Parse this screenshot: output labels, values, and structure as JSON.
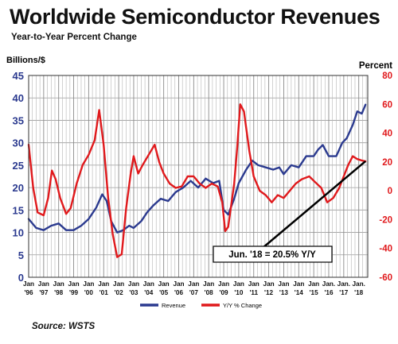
{
  "header": {
    "title": "Worldwide Semiconductor Revenues",
    "subtitle": "Year-to-Year Percent Change"
  },
  "source": "Source: WSTS",
  "colors": {
    "revenue": "#2b3a8f",
    "yoy": "#e0191c",
    "callout_line": "#000000"
  },
  "chart_data": {
    "type": "line",
    "left_axis": {
      "label": "Billions/$",
      "min": 0,
      "max": 45,
      "ticks": [
        "0",
        "5",
        "10",
        "15",
        "20",
        "25",
        "30",
        "35",
        "40",
        "45"
      ]
    },
    "right_axis": {
      "label": "Percent",
      "min": -60,
      "max": 80,
      "ticks": [
        "-60",
        "-40",
        "-20",
        "0",
        "20",
        "40",
        "60",
        "80"
      ]
    },
    "x_ticks": [
      {
        "top": "Jan",
        "bottom": "'96"
      },
      {
        "top": "Jan",
        "bottom": "'97"
      },
      {
        "top": "Jan",
        "bottom": "'98"
      },
      {
        "top": "Jan",
        "bottom": "'99"
      },
      {
        "top": "Jan",
        "bottom": "'00"
      },
      {
        "top": "Jan",
        "bottom": "'01"
      },
      {
        "top": "Jan",
        "bottom": "'02"
      },
      {
        "top": "Jan",
        "bottom": "'03"
      },
      {
        "top": "Jan",
        "bottom": "'04"
      },
      {
        "top": "Jan",
        "bottom": "'05"
      },
      {
        "top": "Jan",
        "bottom": "'06"
      },
      {
        "top": "Jan",
        "bottom": "'07"
      },
      {
        "top": "Jan",
        "bottom": "'08"
      },
      {
        "top": "Jan",
        "bottom": "'09"
      },
      {
        "top": "Jan",
        "bottom": "'10"
      },
      {
        "top": "Jan",
        "bottom": "'11"
      },
      {
        "top": "Jan",
        "bottom": "'12"
      },
      {
        "top": "Jan",
        "bottom": "'13"
      },
      {
        "top": "Jan",
        "bottom": "'14"
      },
      {
        "top": "Jan",
        "bottom": "'15"
      },
      {
        "top": "Jan.",
        "bottom": "'16"
      },
      {
        "top": "Jan.",
        "bottom": "'17"
      },
      {
        "top": "Jan.",
        "bottom": "'18"
      }
    ],
    "grid": true,
    "legend_position": "bottom-center",
    "series": [
      {
        "name": "Revenue",
        "axis": "left",
        "points": [
          [
            1996.0,
            13
          ],
          [
            1996.5,
            11
          ],
          [
            1997.0,
            10.5
          ],
          [
            1997.5,
            11.5
          ],
          [
            1998.0,
            12
          ],
          [
            1998.5,
            10.5
          ],
          [
            1999.0,
            10.5
          ],
          [
            1999.5,
            11.5
          ],
          [
            2000.0,
            13
          ],
          [
            2000.5,
            15.5
          ],
          [
            2000.9,
            18.5
          ],
          [
            2001.2,
            17
          ],
          [
            2001.5,
            12.5
          ],
          [
            2001.9,
            10
          ],
          [
            2002.3,
            10.5
          ],
          [
            2002.7,
            11.5
          ],
          [
            2003.0,
            11
          ],
          [
            2003.5,
            12.5
          ],
          [
            2003.9,
            14.5
          ],
          [
            2004.3,
            16
          ],
          [
            2004.8,
            17.5
          ],
          [
            2005.3,
            17
          ],
          [
            2005.8,
            19
          ],
          [
            2006.3,
            20
          ],
          [
            2006.8,
            21.5
          ],
          [
            2007.3,
            20
          ],
          [
            2007.8,
            22
          ],
          [
            2008.3,
            21
          ],
          [
            2008.7,
            21.5
          ],
          [
            2009.0,
            15
          ],
          [
            2009.3,
            14
          ],
          [
            2009.7,
            17.5
          ],
          [
            2010.0,
            21
          ],
          [
            2010.5,
            24
          ],
          [
            2010.9,
            26
          ],
          [
            2011.3,
            25
          ],
          [
            2011.8,
            24.5
          ],
          [
            2012.3,
            24
          ],
          [
            2012.7,
            24.5
          ],
          [
            2013.0,
            23
          ],
          [
            2013.5,
            25
          ],
          [
            2014.0,
            24.5
          ],
          [
            2014.5,
            27
          ],
          [
            2015.0,
            27
          ],
          [
            2015.3,
            28.5
          ],
          [
            2015.6,
            29.5
          ],
          [
            2016.0,
            27
          ],
          [
            2016.5,
            27
          ],
          [
            2016.9,
            30
          ],
          [
            2017.2,
            31
          ],
          [
            2017.6,
            34
          ],
          [
            2017.9,
            37
          ],
          [
            2018.2,
            36.5
          ],
          [
            2018.45,
            38.5
          ]
        ]
      },
      {
        "name": "Y/Y % Change",
        "axis": "right",
        "points": [
          [
            1996.0,
            32
          ],
          [
            1996.3,
            2
          ],
          [
            1996.6,
            -15
          ],
          [
            1997.0,
            -17
          ],
          [
            1997.3,
            -5
          ],
          [
            1997.55,
            14
          ],
          [
            1997.8,
            8
          ],
          [
            1998.1,
            -5
          ],
          [
            1998.5,
            -16
          ],
          [
            1998.8,
            -12
          ],
          [
            1999.2,
            5
          ],
          [
            1999.6,
            18
          ],
          [
            2000.0,
            25
          ],
          [
            2000.4,
            35
          ],
          [
            2000.7,
            56
          ],
          [
            2001.0,
            32
          ],
          [
            2001.3,
            -5
          ],
          [
            2001.6,
            -30
          ],
          [
            2001.9,
            -46
          ],
          [
            2002.2,
            -44
          ],
          [
            2002.5,
            -12
          ],
          [
            2002.8,
            12
          ],
          [
            2003.0,
            24
          ],
          [
            2003.3,
            12
          ],
          [
            2003.6,
            18
          ],
          [
            2004.0,
            25
          ],
          [
            2004.4,
            32
          ],
          [
            2004.7,
            20
          ],
          [
            2005.0,
            12
          ],
          [
            2005.4,
            5
          ],
          [
            2005.8,
            2
          ],
          [
            2006.2,
            3
          ],
          [
            2006.6,
            10
          ],
          [
            2007.0,
            10
          ],
          [
            2007.4,
            5
          ],
          [
            2007.8,
            2
          ],
          [
            2008.2,
            5
          ],
          [
            2008.6,
            3
          ],
          [
            2008.9,
            -8
          ],
          [
            2009.1,
            -28
          ],
          [
            2009.3,
            -25
          ],
          [
            2009.7,
            5
          ],
          [
            2009.9,
            30
          ],
          [
            2010.1,
            60
          ],
          [
            2010.35,
            55
          ],
          [
            2010.7,
            28
          ],
          [
            2011.0,
            10
          ],
          [
            2011.4,
            0
          ],
          [
            2011.8,
            -3
          ],
          [
            2012.2,
            -8
          ],
          [
            2012.6,
            -3
          ],
          [
            2013.0,
            -5
          ],
          [
            2013.4,
            0
          ],
          [
            2013.8,
            5
          ],
          [
            2014.2,
            8
          ],
          [
            2014.7,
            10
          ],
          [
            2015.1,
            6
          ],
          [
            2015.5,
            2
          ],
          [
            2015.9,
            -8
          ],
          [
            2016.3,
            -5
          ],
          [
            2016.7,
            2
          ],
          [
            2017.0,
            10
          ],
          [
            2017.3,
            18
          ],
          [
            2017.6,
            24
          ],
          [
            2017.9,
            22
          ],
          [
            2018.2,
            21
          ],
          [
            2018.45,
            20.5
          ]
        ]
      }
    ],
    "annotation": {
      "text": "Jun. '18 = 20.5% Y/Y",
      "x": 2018.45,
      "y": 20.5,
      "axis": "right"
    }
  }
}
